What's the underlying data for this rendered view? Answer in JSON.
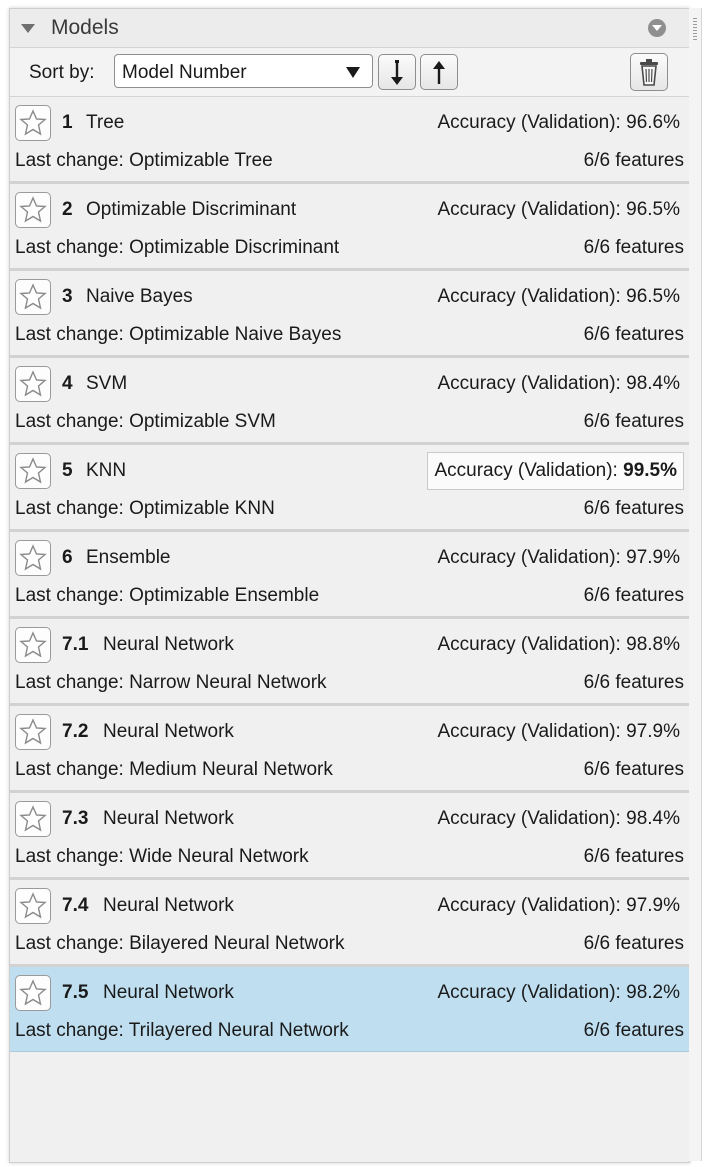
{
  "panel": {
    "title": "Models",
    "toolbar": {
      "sort_label": "Sort by:",
      "sort_value": "Model Number",
      "sort_descending_icon": "arrow-down-icon",
      "sort_ascending_icon": "arrow-up-icon",
      "delete_icon": "trash-icon"
    }
  },
  "models": [
    {
      "number": "1",
      "name": "Tree",
      "accuracy_label": "Accuracy (Validation): ",
      "accuracy": "96.6%",
      "last_change": "Last change: Optimizable Tree",
      "features": "6/6 features"
    },
    {
      "number": "2",
      "name": "Optimizable Discriminant",
      "accuracy_label": "Accuracy (Validation): ",
      "accuracy": "96.5%",
      "last_change": "Last change: Optimizable Discriminant",
      "features": "6/6 features"
    },
    {
      "number": "3",
      "name": "Naive Bayes",
      "accuracy_label": "Accuracy (Validation): ",
      "accuracy": "96.5%",
      "last_change": "Last change: Optimizable Naive Bayes",
      "features": "6/6 features"
    },
    {
      "number": "4",
      "name": "SVM",
      "accuracy_label": "Accuracy (Validation): ",
      "accuracy": "98.4%",
      "last_change": "Last change: Optimizable SVM",
      "features": "6/6 features"
    },
    {
      "number": "5",
      "name": "KNN",
      "accuracy_label": "Accuracy (Validation): ",
      "accuracy": "99.5%",
      "last_change": "Last change: Optimizable KNN",
      "features": "6/6 features",
      "best": true
    },
    {
      "number": "6",
      "name": "Ensemble",
      "accuracy_label": "Accuracy (Validation): ",
      "accuracy": "97.9%",
      "last_change": "Last change: Optimizable Ensemble",
      "features": "6/6 features"
    },
    {
      "number": "7.1",
      "name": "Neural Network",
      "accuracy_label": "Accuracy (Validation): ",
      "accuracy": "98.8%",
      "last_change": "Last change: Narrow Neural Network",
      "features": "6/6 features"
    },
    {
      "number": "7.2",
      "name": "Neural Network",
      "accuracy_label": "Accuracy (Validation): ",
      "accuracy": "97.9%",
      "last_change": "Last change: Medium Neural Network",
      "features": "6/6 features"
    },
    {
      "number": "7.3",
      "name": "Neural Network",
      "accuracy_label": "Accuracy (Validation): ",
      "accuracy": "98.4%",
      "last_change": "Last change: Wide Neural Network",
      "features": "6/6 features"
    },
    {
      "number": "7.4",
      "name": "Neural Network",
      "accuracy_label": "Accuracy (Validation): ",
      "accuracy": "97.9%",
      "last_change": "Last change: Bilayered Neural Network",
      "features": "6/6 features"
    },
    {
      "number": "7.5",
      "name": "Neural Network",
      "accuracy_label": "Accuracy (Validation): ",
      "accuracy": "98.2%",
      "last_change": "Last change: Trilayered Neural Network",
      "features": "6/6 features",
      "selected": true
    }
  ],
  "colors": {
    "selected_row": "#bfdff0",
    "panel_background": "#f0f0f0"
  },
  "icons": {
    "collapse": "triangle-down-icon",
    "panel_menu": "circle-chevron-down-icon",
    "favorite": "star-outline-icon"
  }
}
